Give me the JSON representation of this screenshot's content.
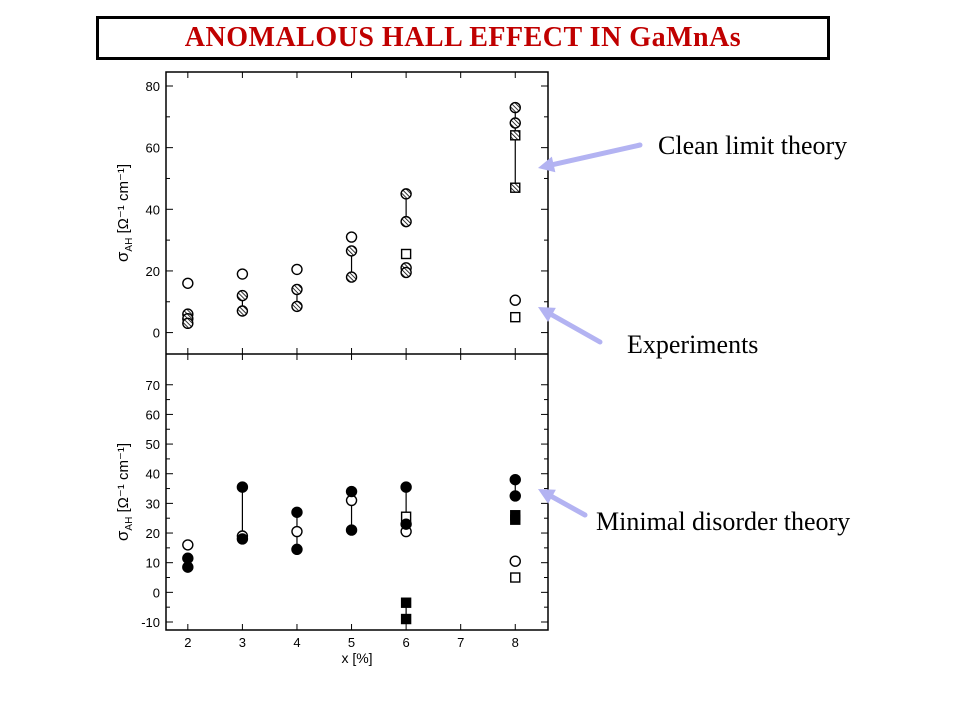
{
  "title": "ANOMALOUS HALL EFFECT IN GaMnAs",
  "annotations": {
    "clean": "Clean limit theory",
    "experiments": "Experiments",
    "minimal": "Minimal disorder theory"
  },
  "colors": {
    "title": "#c00000",
    "arrow": "#b3b3f2",
    "frame": "#000000",
    "grid": "#000000"
  },
  "chart_data": [
    {
      "type": "scatter",
      "panel": "top",
      "ylabel_sigma": "σ",
      "ylabel_sub": "AH",
      "ylabel_unit": "[Ω⁻¹ cm⁻¹]",
      "xlim": [
        1.6,
        8.6
      ],
      "ylim": [
        -5,
        80
      ],
      "yticks": [
        0,
        20,
        40,
        60,
        80
      ],
      "series": [
        {
          "marker": "open-circle",
          "points": [
            [
              2,
              16
            ],
            [
              3,
              19
            ],
            [
              4,
              20.5
            ],
            [
              5,
              31
            ],
            [
              8,
              10.5
            ]
          ]
        },
        {
          "marker": "open-square",
          "points": [
            [
              6,
              25.5
            ],
            [
              8,
              5
            ]
          ]
        },
        {
          "marker": "hatched-circle",
          "points": [
            [
              2,
              6
            ],
            [
              2,
              4.5
            ],
            [
              2,
              3
            ],
            [
              3,
              12
            ],
            [
              3,
              7
            ],
            [
              4,
              14
            ],
            [
              4,
              8.5
            ],
            [
              5,
              26.5
            ],
            [
              5,
              18
            ],
            [
              6,
              45
            ],
            [
              6,
              36
            ],
            [
              6,
              21
            ],
            [
              6,
              19.5
            ],
            [
              8,
              73
            ],
            [
              8,
              68
            ]
          ]
        },
        {
          "marker": "hatched-square",
          "points": [
            [
              8,
              64
            ],
            [
              8,
              47
            ]
          ]
        }
      ],
      "connectors": [
        [
          2,
          3,
          6
        ],
        [
          3,
          7,
          12
        ],
        [
          4,
          8.5,
          14
        ],
        [
          5,
          18,
          26.5
        ],
        [
          6,
          36,
          45
        ],
        [
          6,
          19.5,
          21
        ],
        [
          8,
          47,
          73
        ]
      ]
    },
    {
      "type": "scatter",
      "panel": "bottom",
      "ylabel_sigma": "σ",
      "ylabel_sub": "AH",
      "ylabel_unit": "[Ω⁻¹ cm⁻¹]",
      "xlabel": "x [%]",
      "xlim": [
        1.6,
        8.6
      ],
      "ylim": [
        -10,
        77
      ],
      "xticks": [
        2,
        3,
        4,
        5,
        6,
        7,
        8
      ],
      "yticks": [
        -10,
        0,
        10,
        20,
        30,
        40,
        50,
        60,
        70
      ],
      "series": [
        {
          "marker": "open-circle",
          "points": [
            [
              2,
              16
            ],
            [
              3,
              19
            ],
            [
              4,
              20.5
            ],
            [
              5,
              31
            ],
            [
              6,
              20.5
            ],
            [
              8,
              10.5
            ]
          ]
        },
        {
          "marker": "open-square",
          "points": [
            [
              6,
              25.5
            ],
            [
              8,
              5
            ]
          ]
        },
        {
          "marker": "filled-circle",
          "points": [
            [
              2,
              11.5
            ],
            [
              2,
              8.5
            ],
            [
              3,
              35.5
            ],
            [
              3,
              18
            ],
            [
              4,
              27
            ],
            [
              4,
              14.5
            ],
            [
              5,
              34
            ],
            [
              5,
              21
            ],
            [
              6,
              35.5
            ],
            [
              6,
              23
            ],
            [
              8,
              38
            ],
            [
              8,
              32.5
            ]
          ]
        },
        {
          "marker": "filled-square",
          "points": [
            [
              6,
              -3.5
            ],
            [
              6,
              -9
            ],
            [
              8,
              26
            ],
            [
              8,
              24.5
            ]
          ]
        }
      ],
      "connectors": [
        [
          2,
          8.5,
          11.5
        ],
        [
          3,
          18,
          35.5
        ],
        [
          4,
          14.5,
          27
        ],
        [
          5,
          21,
          34
        ],
        [
          6,
          23,
          35.5
        ],
        [
          6,
          -9,
          -3.5
        ],
        [
          8,
          32.5,
          38
        ],
        [
          8,
          24.5,
          26
        ]
      ]
    }
  ]
}
